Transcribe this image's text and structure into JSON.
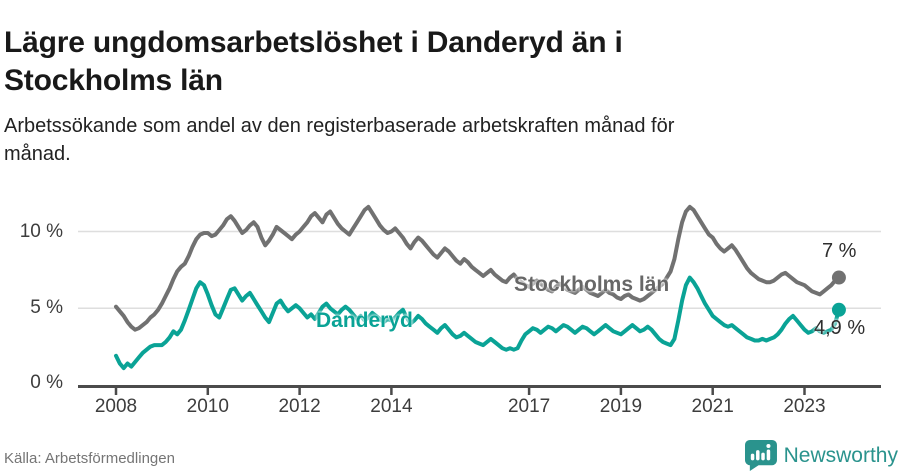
{
  "chart_data": {
    "type": "line",
    "title": "Lägre ungdomsarbetslöshet i Danderyd än i Stockholms län",
    "subtitle": "Arbetssökande som andel av den registerbaserade arbetskraften månad för månad.",
    "x_start_year": 2008,
    "frequency": "monthly",
    "ylim": [
      0,
      12.3
    ],
    "grid": "horizontal",
    "legend_position": "inline-labels",
    "ytick_values": [
      0,
      5,
      10
    ],
    "ytick_labels": [
      "0 %",
      "5 %",
      "10 %"
    ],
    "xticks": [
      2008,
      2010,
      2012,
      2014,
      2017,
      2019,
      2021,
      2023
    ],
    "series": [
      {
        "name": "Stockholms län",
        "color": "#717171",
        "end_label": "7 %",
        "end_value": 7.0,
        "values": [
          5.1,
          4.8,
          4.5,
          4.1,
          3.8,
          3.6,
          3.7,
          3.9,
          4.1,
          4.4,
          4.6,
          4.9,
          5.3,
          5.8,
          6.3,
          6.9,
          7.4,
          7.7,
          7.9,
          8.4,
          9.0,
          9.5,
          9.8,
          9.9,
          9.9,
          9.7,
          9.8,
          10.1,
          10.4,
          10.8,
          11.0,
          10.7,
          10.3,
          9.9,
          10.1,
          10.4,
          10.6,
          10.3,
          9.6,
          9.1,
          9.4,
          9.8,
          10.3,
          10.1,
          9.9,
          9.7,
          9.5,
          9.8,
          10.0,
          10.3,
          10.6,
          11.0,
          11.2,
          10.9,
          10.6,
          11.1,
          11.3,
          10.9,
          10.5,
          10.2,
          10.0,
          9.8,
          10.2,
          10.6,
          11.0,
          11.4,
          11.6,
          11.2,
          10.8,
          10.4,
          10.1,
          9.9,
          10.0,
          10.2,
          9.9,
          9.6,
          9.2,
          8.9,
          9.3,
          9.6,
          9.4,
          9.1,
          8.8,
          8.5,
          8.3,
          8.6,
          8.9,
          8.7,
          8.4,
          8.1,
          7.9,
          8.2,
          8.0,
          7.7,
          7.5,
          7.3,
          7.1,
          7.3,
          7.5,
          7.2,
          7.0,
          6.8,
          6.7,
          7.0,
          7.2,
          6.9,
          6.7,
          6.5,
          6.4,
          6.6,
          6.8,
          6.6,
          6.4,
          6.2,
          6.1,
          6.4,
          6.6,
          6.4,
          6.2,
          6.1,
          6.0,
          6.2,
          6.4,
          6.2,
          6.0,
          5.9,
          5.8,
          6.0,
          6.2,
          6.0,
          5.9,
          5.7,
          5.6,
          5.8,
          5.9,
          5.7,
          5.6,
          5.5,
          5.6,
          5.8,
          6.0,
          6.2,
          6.4,
          6.6,
          7.0,
          7.4,
          8.2,
          9.5,
          10.6,
          11.3,
          11.6,
          11.4,
          11.0,
          10.6,
          10.2,
          9.8,
          9.6,
          9.2,
          8.9,
          8.7,
          8.9,
          9.1,
          8.8,
          8.4,
          8.0,
          7.6,
          7.3,
          7.1,
          6.9,
          6.8,
          6.7,
          6.7,
          6.8,
          7.0,
          7.2,
          7.3,
          7.1,
          6.9,
          6.7,
          6.6,
          6.5,
          6.3,
          6.1,
          6.0,
          5.9,
          6.1,
          6.3,
          6.5,
          6.8,
          7.0
        ]
      },
      {
        "name": "Danderyd",
        "color": "#0aa396",
        "end_label": "4,9 %",
        "end_value": 4.9,
        "values": [
          1.9,
          1.4,
          1.1,
          1.4,
          1.2,
          1.5,
          1.8,
          2.1,
          2.3,
          2.5,
          2.6,
          2.6,
          2.6,
          2.8,
          3.1,
          3.5,
          3.3,
          3.6,
          4.2,
          4.9,
          5.6,
          6.3,
          6.7,
          6.5,
          5.9,
          5.2,
          4.6,
          4.4,
          5.0,
          5.6,
          6.2,
          6.3,
          5.9,
          5.5,
          5.8,
          6.0,
          5.6,
          5.2,
          4.8,
          4.4,
          4.1,
          4.7,
          5.3,
          5.5,
          5.1,
          4.8,
          5.0,
          5.2,
          5.0,
          4.7,
          4.4,
          4.6,
          4.3,
          4.7,
          5.1,
          5.3,
          5.0,
          4.8,
          4.6,
          4.9,
          5.1,
          4.9,
          4.6,
          4.3,
          4.5,
          4.2,
          4.4,
          4.7,
          4.5,
          4.3,
          4.1,
          4.3,
          4.2,
          4.4,
          4.7,
          4.9,
          4.4,
          4.0,
          4.2,
          4.5,
          4.3,
          4.0,
          3.8,
          3.6,
          3.4,
          3.7,
          3.9,
          3.6,
          3.3,
          3.1,
          3.2,
          3.4,
          3.2,
          3.0,
          2.8,
          2.7,
          2.6,
          2.8,
          3.0,
          2.8,
          2.6,
          2.4,
          2.3,
          2.4,
          2.3,
          2.4,
          2.9,
          3.3,
          3.5,
          3.7,
          3.6,
          3.4,
          3.6,
          3.8,
          3.7,
          3.5,
          3.7,
          3.9,
          3.8,
          3.6,
          3.4,
          3.6,
          3.8,
          3.7,
          3.5,
          3.3,
          3.5,
          3.7,
          3.9,
          3.7,
          3.5,
          3.4,
          3.3,
          3.5,
          3.7,
          3.9,
          3.7,
          3.5,
          3.6,
          3.8,
          3.6,
          3.3,
          3.0,
          2.8,
          2.7,
          2.6,
          3.0,
          4.2,
          5.5,
          6.5,
          7.0,
          6.7,
          6.3,
          5.8,
          5.3,
          4.9,
          4.5,
          4.3,
          4.1,
          3.9,
          3.8,
          3.9,
          3.7,
          3.5,
          3.3,
          3.1,
          3.0,
          2.9,
          2.9,
          3.0,
          2.9,
          3.0,
          3.1,
          3.3,
          3.6,
          4.0,
          4.3,
          4.5,
          4.2,
          3.9,
          3.6,
          3.4,
          3.5,
          3.7,
          3.5,
          3.4,
          3.5,
          3.6,
          4.0,
          4.9
        ]
      }
    ]
  },
  "footer": {
    "source": "Källa: Arbetsförmedlingen",
    "brand": "Newsworthy"
  },
  "colors": {
    "background": "#ffffff",
    "grid": "#dedede",
    "axis": "#4b4b4b",
    "tick_label": "#3d3d3d",
    "title": "#191919",
    "source": "#757575",
    "brand": "#2a938d"
  }
}
